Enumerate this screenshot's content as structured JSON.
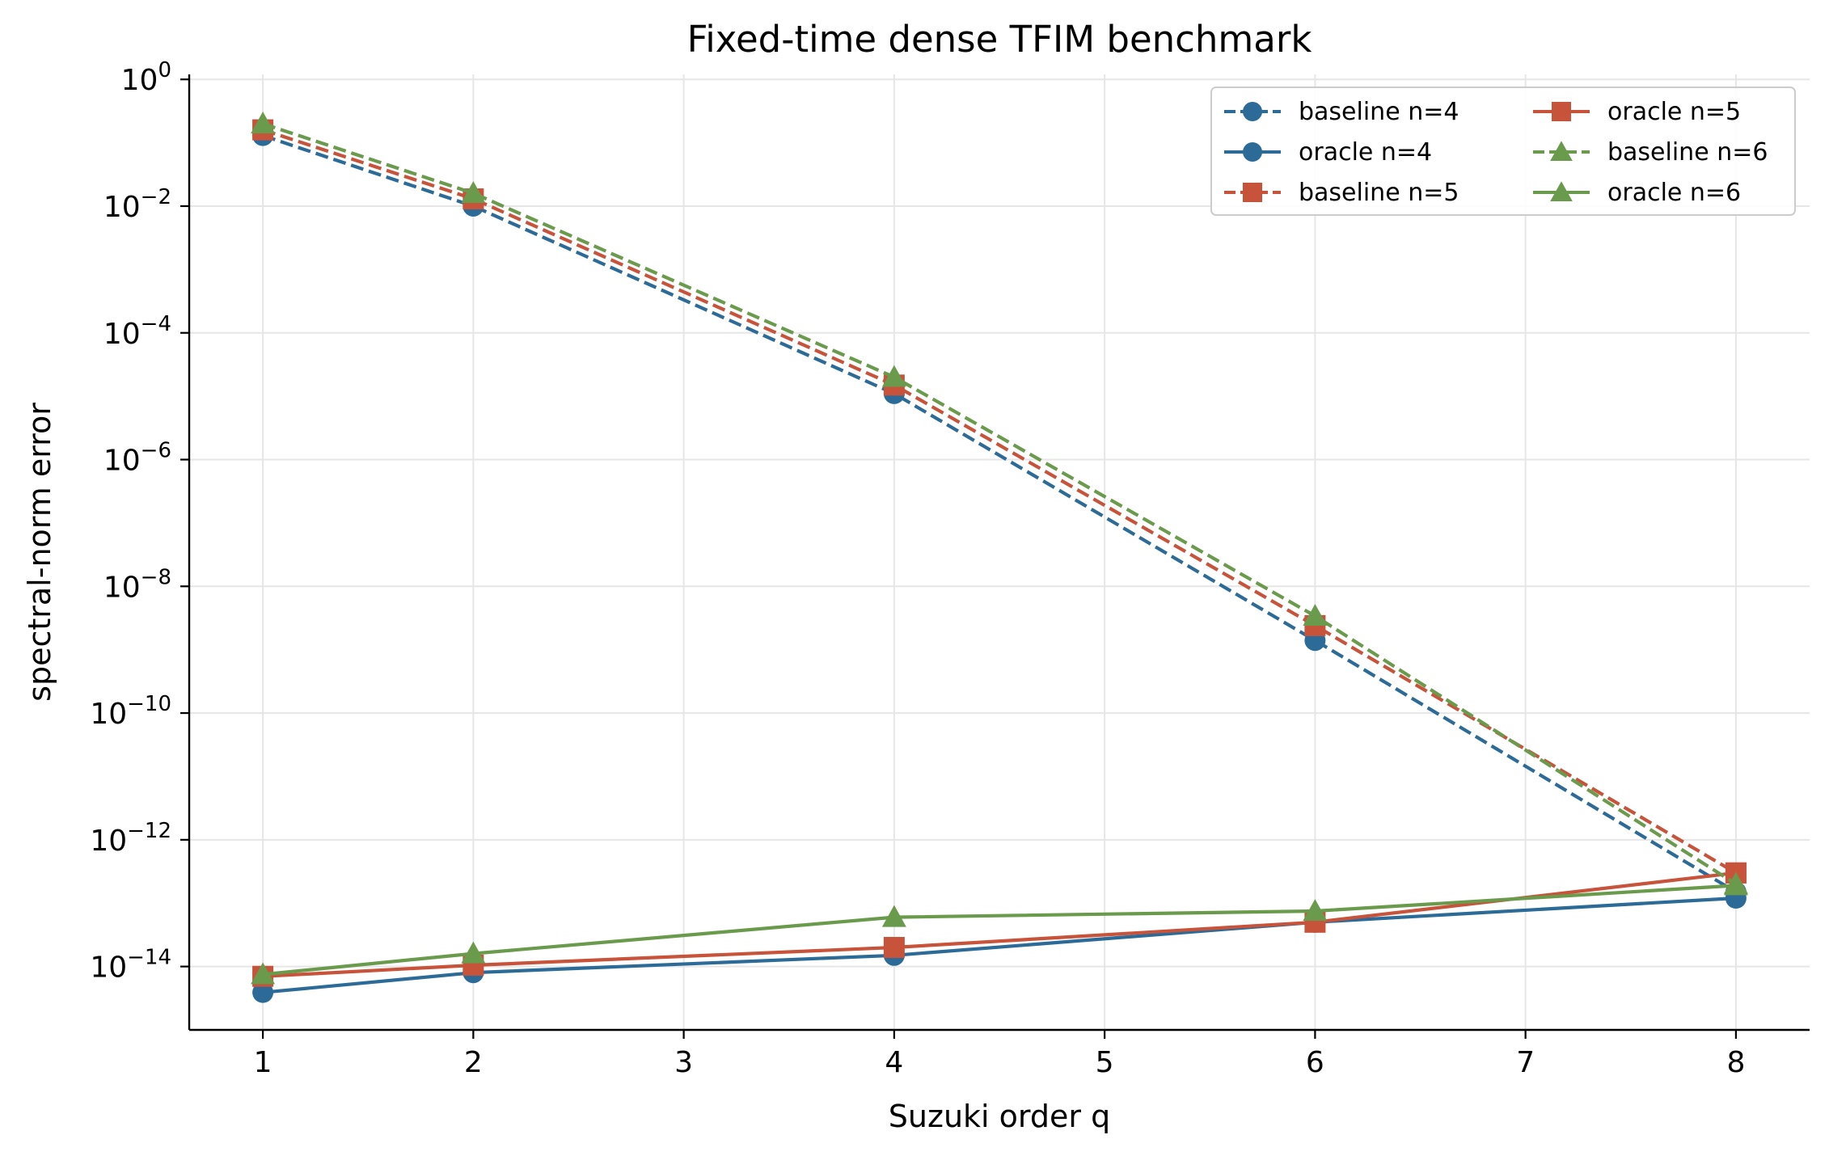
{
  "chart_data": {
    "type": "line",
    "title": "Fixed-time dense TFIM benchmark",
    "xlabel": "Suzuki order q",
    "ylabel": "spectral-norm error",
    "yscale": "log",
    "xlim": [
      0.65,
      8.35
    ],
    "ylim": [
      1e-15,
      1.2
    ],
    "xticks": [
      1,
      2,
      3,
      4,
      5,
      6,
      7,
      8
    ],
    "xtick_labels": [
      "1",
      "2",
      "3",
      "4",
      "5",
      "6",
      "7",
      "8"
    ],
    "yticks": [
      1,
      0.01,
      0.0001,
      1e-06,
      1e-08,
      1e-10,
      1e-12,
      1e-14
    ],
    "ytick_labels": [
      {
        "base": "10",
        "exp": "0"
      },
      {
        "base": "10",
        "exp": "−2"
      },
      {
        "base": "10",
        "exp": "−4"
      },
      {
        "base": "10",
        "exp": "−6"
      },
      {
        "base": "10",
        "exp": "−8"
      },
      {
        "base": "10",
        "exp": "−10"
      },
      {
        "base": "10",
        "exp": "−12"
      },
      {
        "base": "10",
        "exp": "−14"
      }
    ],
    "grid": true,
    "legend_position": "top-right",
    "legend_columns": 2,
    "x": [
      1,
      2,
      4,
      6,
      8
    ],
    "series": [
      {
        "name": "baseline n=4",
        "color": "#2c6b98",
        "dash": "dashed",
        "marker": "circle",
        "values": [
          0.13,
          0.01,
          1.1e-05,
          1.4e-09,
          1.5e-13
        ]
      },
      {
        "name": "oracle n=4",
        "color": "#2c6b98",
        "dash": "solid",
        "marker": "circle",
        "values": [
          3.9e-15,
          8e-15,
          1.5e-14,
          5e-14,
          1.2e-13
        ]
      },
      {
        "name": "baseline n=5",
        "color": "#c8533b",
        "dash": "dashed",
        "marker": "square",
        "values": [
          0.16,
          0.013,
          1.5e-05,
          2.4e-09,
          3e-13
        ]
      },
      {
        "name": "oracle n=5",
        "color": "#c8533b",
        "dash": "solid",
        "marker": "square",
        "values": [
          7e-15,
          1.05e-14,
          2e-14,
          5e-14,
          3e-13
        ]
      },
      {
        "name": "baseline n=6",
        "color": "#6a9a4b",
        "dash": "dashed",
        "marker": "triangle",
        "values": [
          0.2,
          0.016,
          2e-05,
          3.4e-09,
          2e-13
        ]
      },
      {
        "name": "oracle n=6",
        "color": "#6a9a4b",
        "dash": "solid",
        "marker": "triangle",
        "values": [
          7.5e-15,
          1.6e-14,
          6e-14,
          7.5e-14,
          1.9e-13
        ]
      }
    ]
  }
}
